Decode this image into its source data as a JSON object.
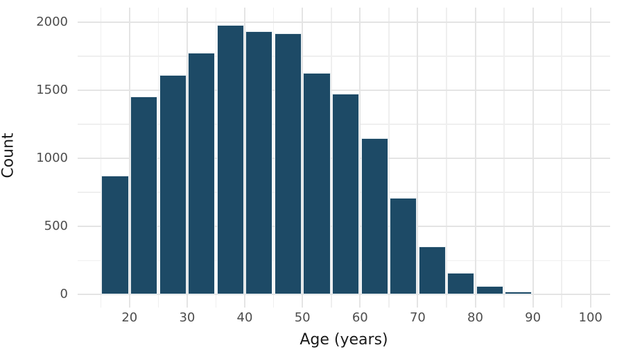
{
  "chart_data": {
    "type": "bar",
    "subtype": "histogram",
    "title": "",
    "xlabel": "Age (years)",
    "ylabel": "Count",
    "bin_width": 5,
    "bin_starts": [
      15,
      20,
      25,
      30,
      35,
      40,
      45,
      50,
      55,
      60,
      65,
      70,
      75,
      80,
      85
    ],
    "counts": [
      875,
      1455,
      1610,
      1775,
      1980,
      1930,
      1915,
      1625,
      1475,
      1150,
      710,
      355,
      160,
      65,
      20
    ],
    "x_ticks": [
      20,
      30,
      40,
      50,
      60,
      70,
      80,
      90,
      100
    ],
    "y_ticks": [
      0,
      500,
      1000,
      1500,
      2000
    ],
    "x_minor_ticks": [
      15,
      25,
      35,
      45,
      55,
      65,
      75,
      85,
      95
    ],
    "y_minor_ticks": [
      250,
      750,
      1250,
      1750
    ],
    "xlim": [
      11,
      103.4
    ],
    "ylim": [
      -95,
      2105
    ],
    "grid": "major+minor",
    "legend": "none",
    "colors": {
      "bar_fill": "#1d4a66",
      "bar_stroke": "#e9f0f4",
      "grid_major": "#e4e4e4",
      "grid_minor": "#efefef",
      "tick_label": "#4d4d4d",
      "axis_title": "#1a1a1a",
      "background": "#ffffff"
    }
  }
}
